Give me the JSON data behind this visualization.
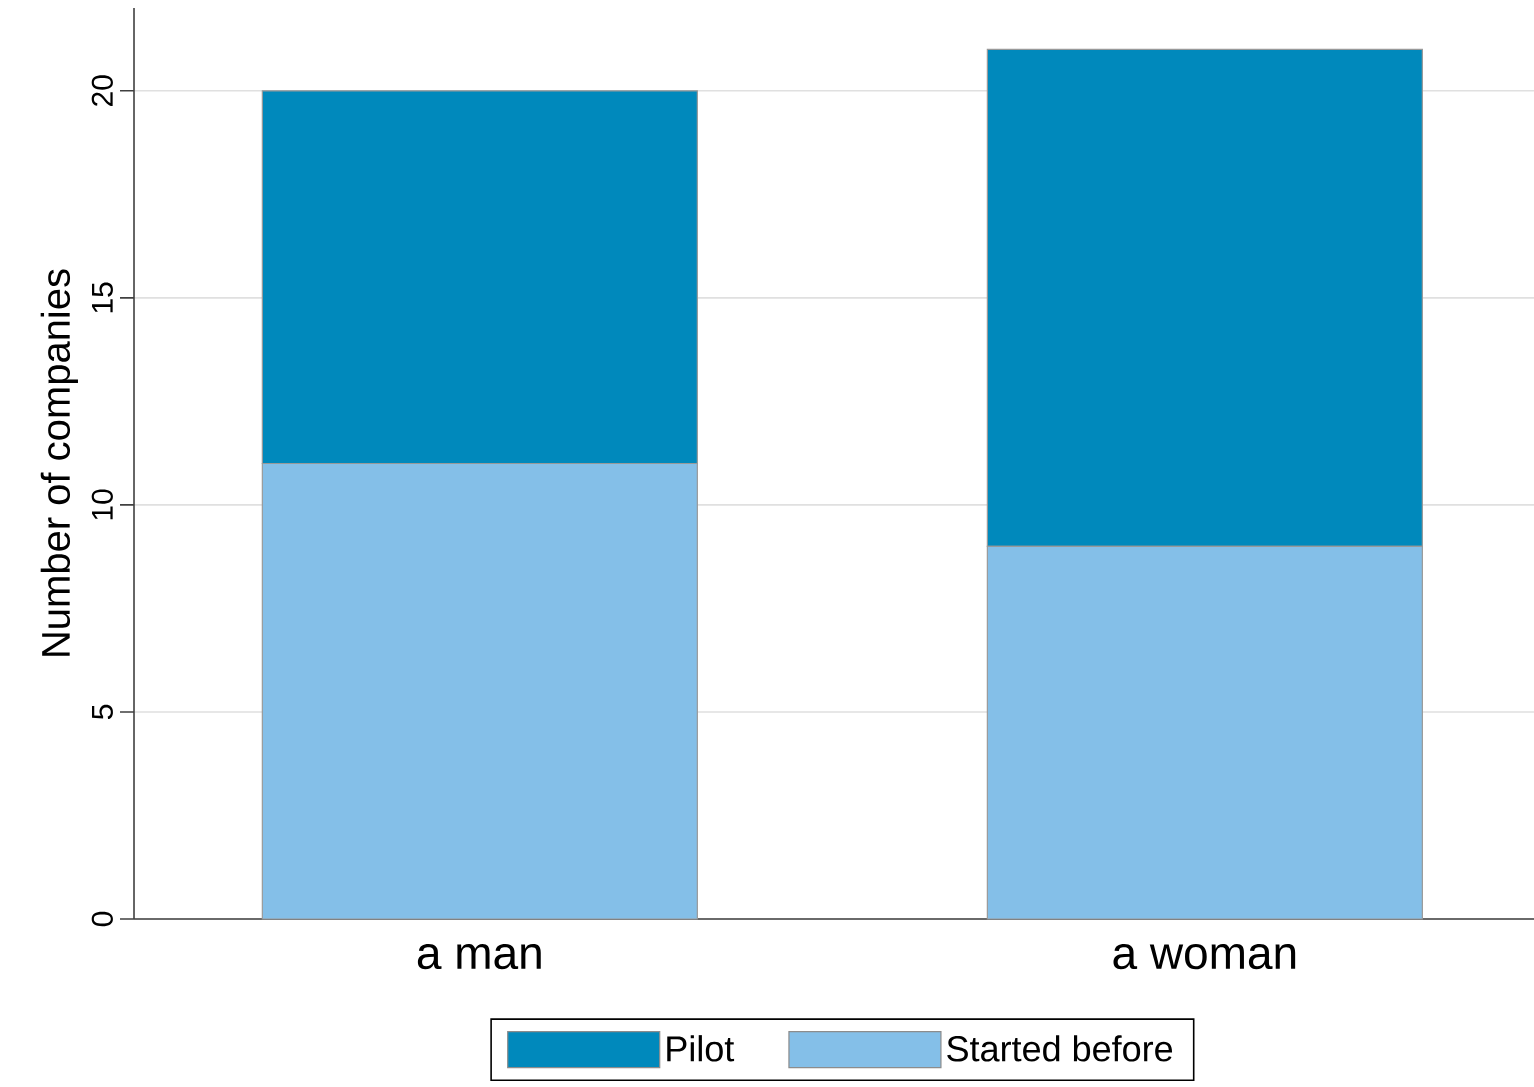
{
  "chart_data": {
    "type": "bar",
    "stacked": true,
    "ylabel": "Number of companies",
    "categories": [
      "a man",
      "a woman"
    ],
    "series": [
      {
        "name": "Started before",
        "color": "#84bfe8",
        "values": [
          11,
          9
        ]
      },
      {
        "name": "Pilot",
        "color": "#0089bc",
        "values": [
          9,
          12
        ]
      }
    ],
    "ylim": [
      0,
      22
    ],
    "yticks": [
      0,
      5,
      10,
      15,
      20
    ],
    "grid": "y",
    "legend": "bottom"
  }
}
